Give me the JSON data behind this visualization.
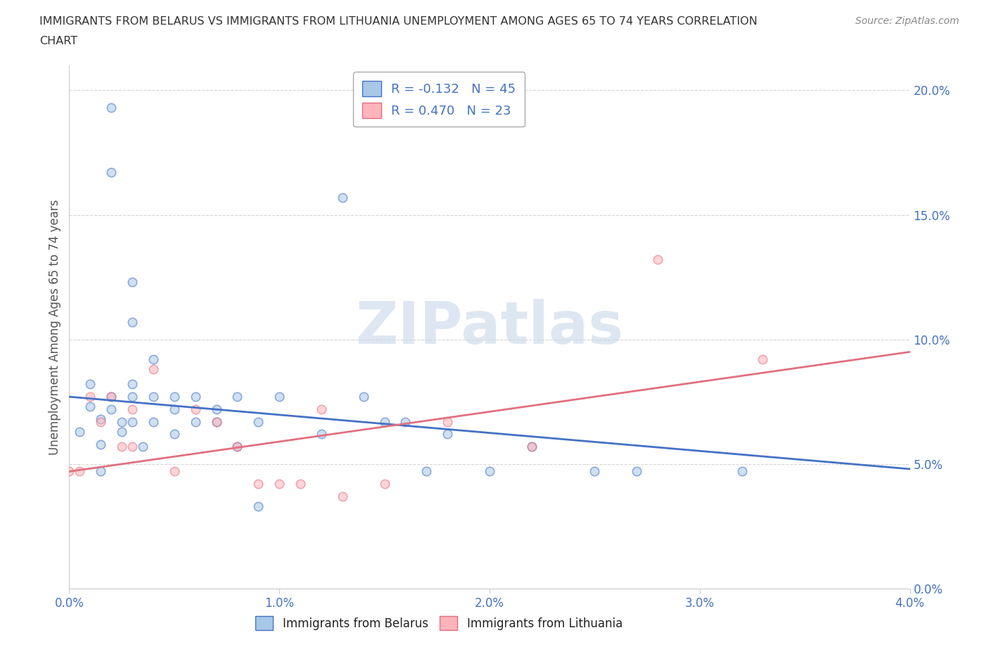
{
  "title_line1": "IMMIGRANTS FROM BELARUS VS IMMIGRANTS FROM LITHUANIA UNEMPLOYMENT AMONG AGES 65 TO 74 YEARS CORRELATION",
  "title_line2": "CHART",
  "source_text": "Source: ZipAtlas.com",
  "ylabel": "Unemployment Among Ages 65 to 74 years",
  "xlim": [
    0.0,
    0.04
  ],
  "ylim": [
    0.0,
    0.21
  ],
  "xticks": [
    0.0,
    0.01,
    0.02,
    0.03,
    0.04
  ],
  "yticks": [
    0.0,
    0.05,
    0.1,
    0.15,
    0.2
  ],
  "xticklabels": [
    "0.0%",
    "1.0%",
    "2.0%",
    "3.0%",
    "4.0%"
  ],
  "yticklabels": [
    "0.0%",
    "5.0%",
    "10.0%",
    "15.0%",
    "20.0%"
  ],
  "tick_label_color": "#4472c4",
  "belarus_color": "#a8c8e8",
  "belarus_edge": "#4472c4",
  "lithuania_color": "#ffb3ba",
  "lithuania_edge": "#e07080",
  "belarus_line_color": "#4472c4",
  "lithuania_line_color": "#e07080",
  "belarus_R": -0.132,
  "belarus_N": 45,
  "lithuania_R": 0.47,
  "lithuania_N": 23,
  "watermark_text": "ZIPatlas",
  "watermark_color": "#c8d8e8",
  "legend_label1": "R = -0.132   N = 45",
  "legend_label2": "R = 0.470   N = 23",
  "legend_text_color": "#4472c4",
  "bottom_legend_label1": "Immigrants from Belarus",
  "bottom_legend_label2": "Immigrants from Lithuania",
  "bottom_legend_text_color": "#222222",
  "belarus_x": [
    0.0005,
    0.001,
    0.001,
    0.0015,
    0.0015,
    0.0015,
    0.002,
    0.002,
    0.002,
    0.002,
    0.0025,
    0.0025,
    0.003,
    0.003,
    0.003,
    0.003,
    0.003,
    0.0035,
    0.004,
    0.004,
    0.004,
    0.005,
    0.005,
    0.005,
    0.006,
    0.006,
    0.007,
    0.007,
    0.008,
    0.008,
    0.009,
    0.009,
    0.01,
    0.012,
    0.013,
    0.014,
    0.015,
    0.016,
    0.017,
    0.018,
    0.02,
    0.022,
    0.025,
    0.027,
    0.032
  ],
  "belarus_y": [
    0.063,
    0.073,
    0.082,
    0.068,
    0.058,
    0.047,
    0.193,
    0.167,
    0.072,
    0.077,
    0.063,
    0.067,
    0.123,
    0.107,
    0.082,
    0.077,
    0.067,
    0.057,
    0.092,
    0.077,
    0.067,
    0.077,
    0.072,
    0.062,
    0.077,
    0.067,
    0.072,
    0.067,
    0.077,
    0.057,
    0.067,
    0.033,
    0.077,
    0.062,
    0.157,
    0.077,
    0.067,
    0.067,
    0.047,
    0.062,
    0.047,
    0.057,
    0.047,
    0.047,
    0.047
  ],
  "lithuania_x": [
    0.0005,
    0.001,
    0.0015,
    0.002,
    0.0025,
    0.003,
    0.003,
    0.004,
    0.005,
    0.006,
    0.007,
    0.008,
    0.009,
    0.01,
    0.011,
    0.012,
    0.013,
    0.015,
    0.018,
    0.022,
    0.028,
    0.033,
    0.0
  ],
  "lithuania_y": [
    0.047,
    0.077,
    0.067,
    0.077,
    0.057,
    0.072,
    0.057,
    0.088,
    0.047,
    0.072,
    0.067,
    0.057,
    0.042,
    0.042,
    0.042,
    0.072,
    0.037,
    0.042,
    0.067,
    0.057,
    0.132,
    0.092,
    0.047
  ],
  "belarus_line_x0": 0.0,
  "belarus_line_y0": 0.077,
  "belarus_line_x1": 0.04,
  "belarus_line_y1": 0.048,
  "lithuania_line_x0": 0.0,
  "lithuania_line_y0": 0.047,
  "lithuania_line_x1": 0.04,
  "lithuania_line_y1": 0.095,
  "background_color": "#ffffff",
  "grid_color": "#cccccc",
  "title_color": "#333333",
  "axis_label_color": "#555555",
  "marker_size": 80,
  "marker_alpha": 0.55,
  "line_width": 2.0
}
